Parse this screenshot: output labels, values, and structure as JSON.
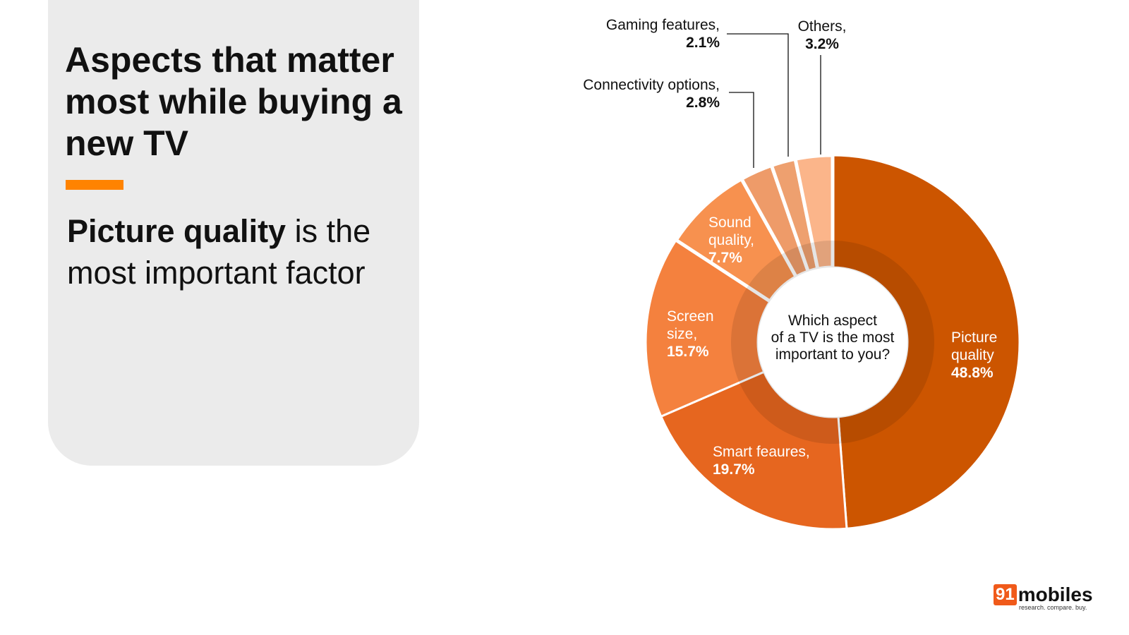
{
  "title": "Aspects that matter most while buying a new TV",
  "subtitle_bold": "Picture quality",
  "subtitle_rest": " is the most important factor",
  "logo": {
    "number": "91",
    "name": "mobiles",
    "tagline": "research. compare. buy."
  },
  "colors": {
    "accent": "#ff8300",
    "panel": "#ebebeb"
  },
  "chart_data": {
    "type": "pie",
    "donut": true,
    "center_label": [
      "Which aspect",
      "of a TV is the most",
      "important to you?"
    ],
    "slices": [
      {
        "label": "Picture quality",
        "value": 48.8,
        "display": "48.8%",
        "color": "#cc5500"
      },
      {
        "label": "Smart feaures,",
        "value": 19.7,
        "display": "19.7%",
        "color": "#e6661f"
      },
      {
        "label": "Screen size,",
        "value": 15.7,
        "display": "15.7%",
        "color": "#f4813e"
      },
      {
        "label": "Sound quality,",
        "value": 7.7,
        "display": "7.7%",
        "color": "#f7914f"
      },
      {
        "label": "Connectivity options,",
        "value": 2.8,
        "display": "2.8%",
        "color": "#ee9b69"
      },
      {
        "label": "Gaming features,",
        "value": 2.1,
        "display": "2.1%",
        "color": "#eea06f"
      },
      {
        "label": "Others,",
        "value": 3.2,
        "display": "3.2%",
        "color": "#fbb58a"
      }
    ]
  }
}
